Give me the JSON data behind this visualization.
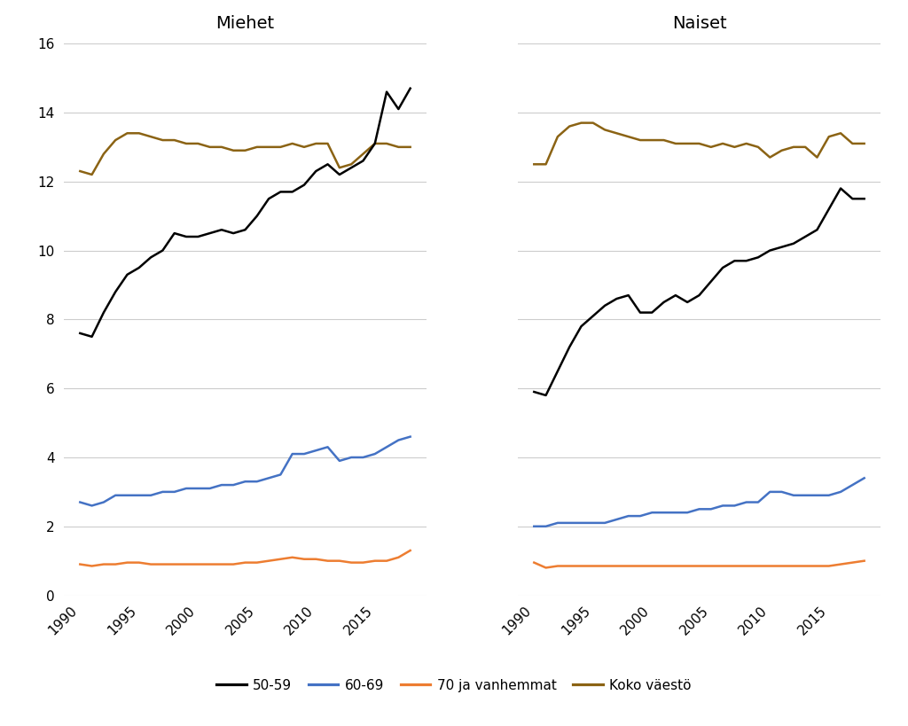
{
  "years": [
    1990,
    1991,
    1992,
    1993,
    1994,
    1995,
    1996,
    1997,
    1998,
    1999,
    2000,
    2001,
    2002,
    2003,
    2004,
    2005,
    2006,
    2007,
    2008,
    2009,
    2010,
    2011,
    2012,
    2013,
    2014,
    2015,
    2016,
    2017,
    2018
  ],
  "miehet": {
    "age_50_59": [
      7.6,
      7.5,
      8.2,
      8.8,
      9.3,
      9.5,
      9.8,
      10.0,
      10.5,
      10.4,
      10.4,
      10.5,
      10.6,
      10.5,
      10.6,
      11.0,
      11.5,
      11.7,
      11.7,
      11.9,
      12.3,
      12.5,
      12.2,
      12.4,
      12.6,
      13.1,
      14.6,
      14.1,
      14.7
    ],
    "age_60_69": [
      2.7,
      2.6,
      2.7,
      2.9,
      2.9,
      2.9,
      2.9,
      3.0,
      3.0,
      3.1,
      3.1,
      3.1,
      3.2,
      3.2,
      3.3,
      3.3,
      3.4,
      3.5,
      4.1,
      4.1,
      4.2,
      4.3,
      3.9,
      4.0,
      4.0,
      4.1,
      4.3,
      4.5,
      4.6
    ],
    "age_70plus": [
      0.9,
      0.85,
      0.9,
      0.9,
      0.95,
      0.95,
      0.9,
      0.9,
      0.9,
      0.9,
      0.9,
      0.9,
      0.9,
      0.9,
      0.95,
      0.95,
      1.0,
      1.05,
      1.1,
      1.05,
      1.05,
      1.0,
      1.0,
      0.95,
      0.95,
      1.0,
      1.0,
      1.1,
      1.3
    ],
    "koko_vaesto": [
      12.3,
      12.2,
      12.8,
      13.2,
      13.4,
      13.4,
      13.3,
      13.2,
      13.2,
      13.1,
      13.1,
      13.0,
      13.0,
      12.9,
      12.9,
      13.0,
      13.0,
      13.0,
      13.1,
      13.0,
      13.1,
      13.1,
      12.4,
      12.5,
      12.8,
      13.1,
      13.1,
      13.0,
      13.0
    ]
  },
  "naiset": {
    "age_50_59": [
      5.9,
      5.8,
      6.5,
      7.2,
      7.8,
      8.1,
      8.4,
      8.6,
      8.7,
      8.2,
      8.2,
      8.5,
      8.7,
      8.5,
      8.7,
      9.1,
      9.5,
      9.7,
      9.7,
      9.8,
      10.0,
      10.1,
      10.2,
      10.4,
      10.6,
      11.2,
      11.8,
      11.5,
      11.5
    ],
    "age_60_69": [
      2.0,
      2.0,
      2.1,
      2.1,
      2.1,
      2.1,
      2.1,
      2.2,
      2.3,
      2.3,
      2.4,
      2.4,
      2.4,
      2.4,
      2.5,
      2.5,
      2.6,
      2.6,
      2.7,
      2.7,
      3.0,
      3.0,
      2.9,
      2.9,
      2.9,
      2.9,
      3.0,
      3.2,
      3.4
    ],
    "age_70plus": [
      0.95,
      0.8,
      0.85,
      0.85,
      0.85,
      0.85,
      0.85,
      0.85,
      0.85,
      0.85,
      0.85,
      0.85,
      0.85,
      0.85,
      0.85,
      0.85,
      0.85,
      0.85,
      0.85,
      0.85,
      0.85,
      0.85,
      0.85,
      0.85,
      0.85,
      0.85,
      0.9,
      0.95,
      1.0
    ],
    "koko_vaesto": [
      12.5,
      12.5,
      13.3,
      13.6,
      13.7,
      13.7,
      13.5,
      13.4,
      13.3,
      13.2,
      13.2,
      13.2,
      13.1,
      13.1,
      13.1,
      13.0,
      13.1,
      13.0,
      13.1,
      13.0,
      12.7,
      12.9,
      13.0,
      13.0,
      12.7,
      13.3,
      13.4,
      13.1,
      13.1
    ]
  },
  "colors": {
    "age_50_59": "#000000",
    "age_60_69": "#4472C4",
    "age_70plus": "#ED7D31",
    "koko_vaesto": "#8B6314"
  },
  "linewidth": 1.8,
  "title_miehet": "Miehet",
  "title_naiset": "Naiset",
  "ylim": [
    0,
    16
  ],
  "yticks": [
    0,
    2,
    4,
    6,
    8,
    10,
    12,
    14,
    16
  ],
  "xticks": [
    1990,
    1995,
    2000,
    2005,
    2010,
    2015
  ],
  "legend_labels": [
    "50-59",
    "60-69",
    "70 ja vanhemmat",
    "Koko väestö"
  ],
  "background_color": "#ffffff",
  "title_fontsize": 14,
  "tick_fontsize": 11,
  "legend_fontsize": 11
}
